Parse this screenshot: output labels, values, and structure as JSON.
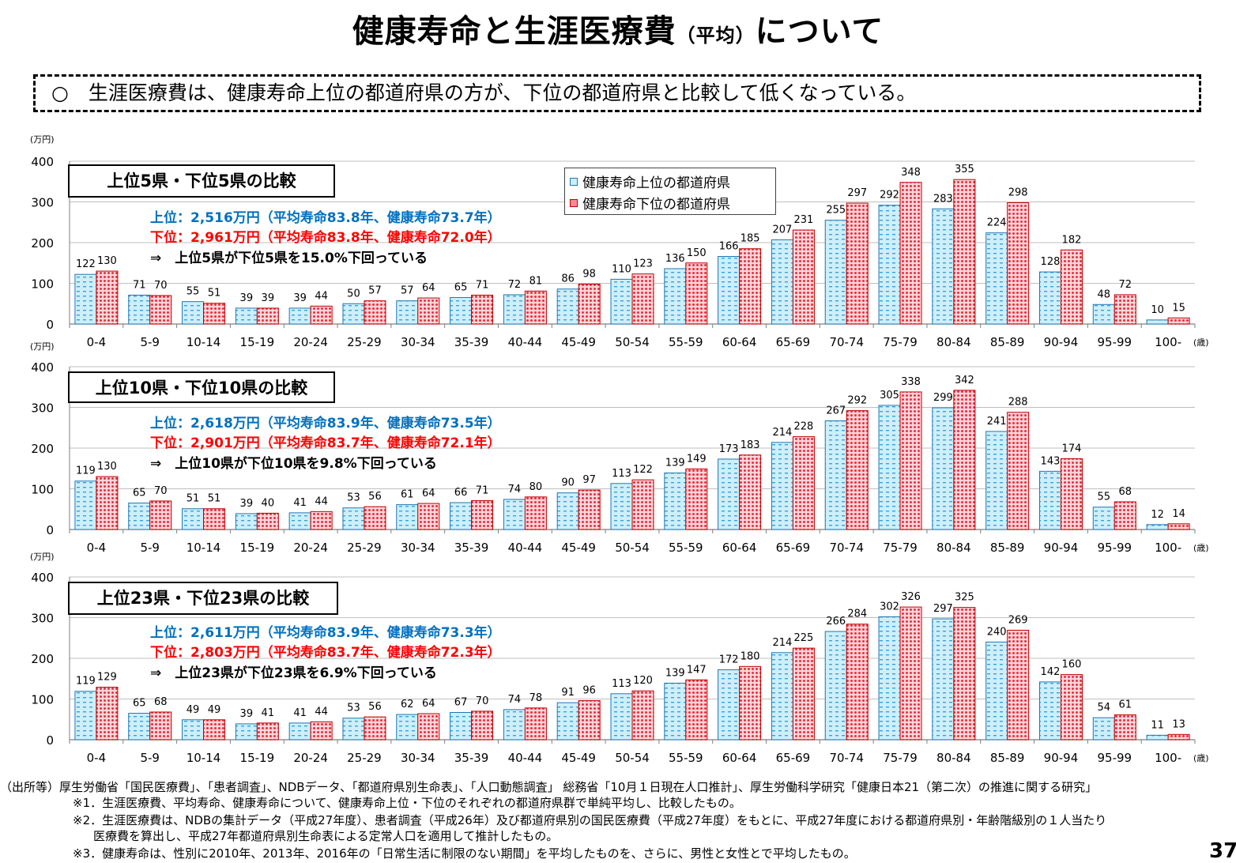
{
  "page": {
    "title_main": "健康寿命と生涯医療費",
    "title_paren": "（平均）",
    "title_tail": "について",
    "summary": "○　生涯医療費は、健康寿命上位の都道府県の方が、下位の都道府県と比較して低くなっている。",
    "page_number": "37"
  },
  "legend": {
    "upper": "健康寿命上位の都道府県",
    "lower": "健康寿命下位の都道府県"
  },
  "colors": {
    "upper_fill": "#CDEFFA",
    "upper_stroke": "#1F77B4",
    "lower_fill": "#FF8A96",
    "lower_stroke": "#C00000",
    "note_blue": "#0070C0",
    "note_red": "#FF0000"
  },
  "panels": [
    {
      "title": "上位5県・下位5県の比較",
      "note_upper": "上位：2,516万円（平均寿命83.8年、健康寿命73.7年）",
      "note_lower": "下位：2,961万円（平均寿命83.8年、健康寿命72.0年）",
      "note_result": "⇒　上位5県が下位5県を15.0%下回っている"
    },
    {
      "title": "上位10県・下位10県の比較",
      "note_upper": "上位：2,618万円（平均寿命83.9年、健康寿命73.5年）",
      "note_lower": "下位：2,901万円（平均寿命83.7年、健康寿命72.1年）",
      "note_result": "⇒　上位10県が下位10県を9.8%下回っている"
    },
    {
      "title": "上位23県・下位23県の比較",
      "note_upper": "上位：2,611万円（平均寿命83.9年、健康寿命73.3年）",
      "note_lower": "下位：2,803万円（平均寿命83.7年、健康寿命72.3年）",
      "note_result": "⇒　上位23県が下位23県を6.9%下回っている"
    }
  ],
  "chart_data": [
    {
      "type": "bar",
      "title": "上位5県・下位5県の比較",
      "ylabel": "（万円）",
      "xlabel": "（歳）",
      "ylim": [
        0,
        400
      ],
      "yticks": [
        0,
        100,
        200,
        300,
        400
      ],
      "grid": true,
      "legend_position": "top-right",
      "categories": [
        "0-4",
        "5-9",
        "10-14",
        "15-19",
        "20-24",
        "25-29",
        "30-34",
        "35-39",
        "40-44",
        "45-49",
        "50-54",
        "55-59",
        "60-64",
        "65-69",
        "70-74",
        "75-79",
        "80-84",
        "85-89",
        "90-94",
        "95-99",
        "100-"
      ],
      "series": [
        {
          "name": "健康寿命上位の都道府県",
          "values": [
            122,
            71,
            55,
            39,
            39,
            50,
            57,
            65,
            72,
            86,
            110,
            136,
            166,
            207,
            255,
            292,
            283,
            224,
            128,
            48,
            10
          ]
        },
        {
          "name": "健康寿命下位の都道府県",
          "values": [
            130,
            70,
            51,
            39,
            44,
            57,
            64,
            71,
            81,
            98,
            123,
            150,
            185,
            231,
            297,
            348,
            355,
            298,
            182,
            72,
            15
          ]
        }
      ]
    },
    {
      "type": "bar",
      "title": "上位10県・下位10県の比較",
      "ylabel": "（万円）",
      "xlabel": "（歳）",
      "ylim": [
        0,
        400
      ],
      "yticks": [
        0,
        100,
        200,
        300,
        400
      ],
      "grid": true,
      "legend_position": "top-right",
      "categories": [
        "0-4",
        "5-9",
        "10-14",
        "15-19",
        "20-24",
        "25-29",
        "30-34",
        "35-39",
        "40-44",
        "45-49",
        "50-54",
        "55-59",
        "60-64",
        "65-69",
        "70-74",
        "75-79",
        "80-84",
        "85-89",
        "90-94",
        "95-99",
        "100-"
      ],
      "series": [
        {
          "name": "健康寿命上位の都道府県",
          "values": [
            119,
            65,
            51,
            39,
            41,
            53,
            61,
            66,
            74,
            90,
            113,
            139,
            173,
            214,
            267,
            305,
            299,
            241,
            143,
            55,
            12
          ]
        },
        {
          "name": "健康寿命下位の都道府県",
          "values": [
            130,
            70,
            51,
            40,
            44,
            56,
            64,
            71,
            80,
            97,
            122,
            149,
            183,
            228,
            292,
            338,
            342,
            288,
            174,
            68,
            14
          ]
        }
      ]
    },
    {
      "type": "bar",
      "title": "上位23県・下位23県の比較",
      "ylabel": "（万円）",
      "xlabel": "（歳）",
      "ylim": [
        0,
        400
      ],
      "yticks": [
        0,
        100,
        200,
        300,
        400
      ],
      "grid": true,
      "legend_position": "top-right",
      "categories": [
        "0-4",
        "5-9",
        "10-14",
        "15-19",
        "20-24",
        "25-29",
        "30-34",
        "35-39",
        "40-44",
        "45-49",
        "50-54",
        "55-59",
        "60-64",
        "65-69",
        "70-74",
        "75-79",
        "80-84",
        "85-89",
        "90-94",
        "95-99",
        "100-"
      ],
      "series": [
        {
          "name": "健康寿命上位の都道府県",
          "values": [
            119,
            65,
            49,
            39,
            41,
            53,
            62,
            67,
            74,
            91,
            113,
            139,
            172,
            214,
            266,
            302,
            297,
            240,
            142,
            54,
            11
          ]
        },
        {
          "name": "健康寿命下位の都道府県",
          "values": [
            129,
            68,
            49,
            41,
            44,
            56,
            64,
            70,
            78,
            96,
            120,
            147,
            180,
            225,
            284,
            326,
            325,
            269,
            160,
            61,
            13
          ]
        }
      ]
    }
  ],
  "footer": {
    "source": "（出所等）厚生労働省「国民医療費」、「患者調査」、NDBデータ、「都道府県別生命表」、「人口動態調査」 総務省「10月１日現在人口推計」、厚生労働科学研究「健康日本21（第二次）の推進に関する研究」",
    "note1": "※1．生涯医療費、平均寿命、健康寿命について、健康寿命上位・下位のそれぞれの都道府県群で単純平均し、比較したもの。",
    "note2a": "※2．生涯医療費は、NDBの集計データ（平成27年度）、患者調査（平成26年）及び都道府県別の国民医療費（平成27年度）をもとに、平成27年度における都道府県別・年齢階級別の１人当たり",
    "note2b": "医療費を算出し、平成27年都道府県別生命表による定常人口を適用して推計したもの。",
    "note3": "※3．健康寿命は、性別に2010年、2013年、2016年の「日常生活に制限のない期間」を平均したものを、さらに、男性と女性とで平均したもの。"
  }
}
